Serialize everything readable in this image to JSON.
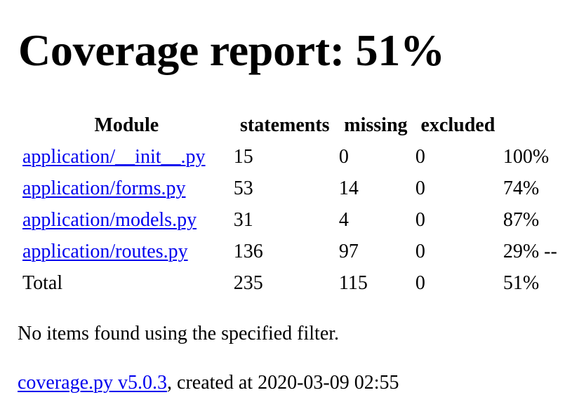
{
  "header": {
    "title": "Coverage report: 51%"
  },
  "table": {
    "columns": {
      "module": "Module",
      "statements": "statements",
      "missing": "missing",
      "excluded": "excluded"
    },
    "rows": [
      {
        "module": "application/__init__.py",
        "statements": "15",
        "missing": "0",
        "excluded": "0",
        "coverage": "100%"
      },
      {
        "module": "application/forms.py",
        "statements": "53",
        "missing": "14",
        "excluded": "0",
        "coverage": "74%"
      },
      {
        "module": "application/models.py",
        "statements": "31",
        "missing": "4",
        "excluded": "0",
        "coverage": "87%"
      },
      {
        "module": "application/routes.py",
        "statements": "136",
        "missing": "97",
        "excluded": "0",
        "coverage": "29% --"
      }
    ],
    "total": {
      "label": "Total",
      "statements": "235",
      "missing": "115",
      "excluded": "0",
      "coverage": "51%"
    }
  },
  "filter_message": "No items found using the specified filter.",
  "footer": {
    "link_text": "coverage.py v5.0.3",
    "created_text": ", created at 2020-03-09 02:55"
  },
  "colors": {
    "link": "#0000ee",
    "text": "#000000",
    "background": "#ffffff"
  }
}
